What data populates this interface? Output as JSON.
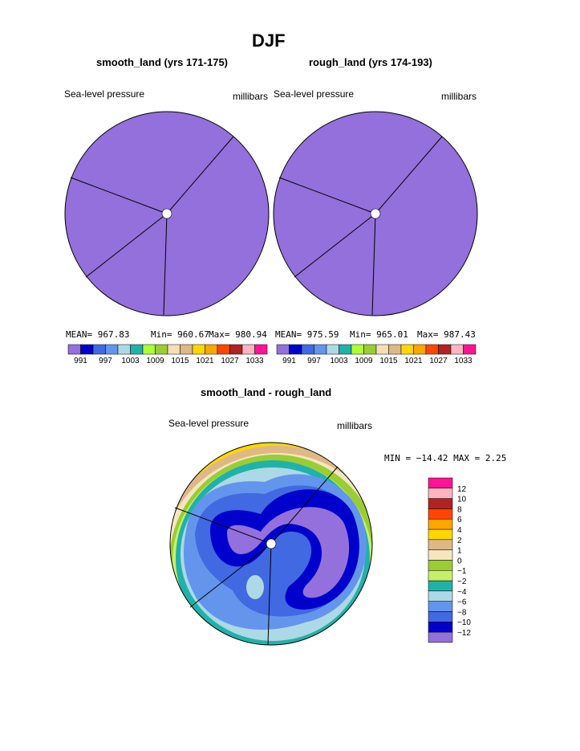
{
  "page_title": "DJF",
  "chart_data": [
    {
      "type": "heatmap",
      "title": "smooth_land (yrs 171-175)",
      "left_label": "Sea-level pressure",
      "right_label": "millibars",
      "stats": {
        "mean": "MEAN=  967.83",
        "min": "Min=  960.67",
        "max": "Max=  980.94"
      },
      "colorbar_labels": [
        "991",
        "997",
        "1003",
        "1009",
        "1015",
        "1021",
        "1027",
        "1033"
      ]
    },
    {
      "type": "heatmap",
      "title": "rough_land (yrs 174-193)",
      "left_label": "Sea-level pressure",
      "right_label": "millibars",
      "stats": {
        "mean": "MEAN=  975.59",
        "min": "Min=  965.01",
        "max": "Max=  987.43"
      },
      "colorbar_labels": [
        "991",
        "997",
        "1003",
        "1009",
        "1015",
        "1021",
        "1027",
        "1033"
      ]
    },
    {
      "type": "heatmap",
      "title": "smooth_land - rough_land",
      "left_label": "Sea-level pressure",
      "right_label": "millibars",
      "minmax": "MIN = −14.42 MAX =    2.25",
      "colorbar_labels": [
        "12",
        "10",
        "8",
        "6",
        "4",
        "2",
        "1",
        "0",
        "−1",
        "−2",
        "−4",
        "−6",
        "−8",
        "−10",
        "−12"
      ]
    }
  ],
  "palette": [
    "#9370db",
    "#0000cd",
    "#4169e1",
    "#6495ed",
    "#add8e6",
    "#20b2aa",
    "#adff2f",
    "#9acd32",
    "#f5deb3",
    "#deb887",
    "#ffd700",
    "#ffa500",
    "#ff4500",
    "#b22222",
    "#ffb6c1",
    "#ff1493"
  ],
  "diff_palette": [
    "#9370db",
    "#0000cd",
    "#4169e1",
    "#6495ed",
    "#add8e6",
    "#20b2aa",
    "#c6f06a",
    "#9acd32",
    "#f5e6c0",
    "#deb887",
    "#ffd700",
    "#ffa500",
    "#ff4500",
    "#b22222",
    "#ffb6c1",
    "#ff1493"
  ]
}
